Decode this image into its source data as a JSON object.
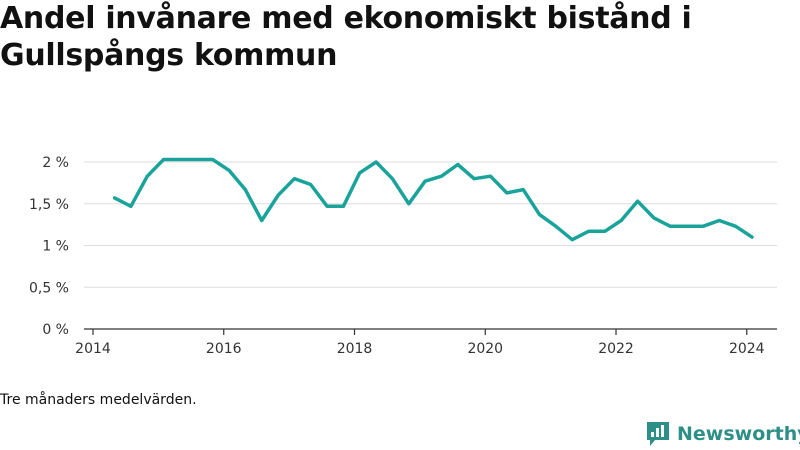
{
  "title": "Andel invånare med ekonomiskt bistånd i Gullspångs kommun",
  "caption": "Tre månaders medelvärden.",
  "brand": {
    "name": "Newsworthy",
    "icon": "newsworthy-logo-icon"
  },
  "colors": {
    "line": "#1aa39a",
    "grid": "#dddddd",
    "brand": "#2e8f86"
  },
  "chart_data": {
    "type": "line",
    "title": "Andel invånare med ekonomiskt bistånd i Gullspångs kommun",
    "xlabel": "",
    "ylabel": "",
    "xlim": [
      2014,
      2024.6
    ],
    "ylim": [
      0,
      2
    ],
    "x_ticks": [
      2014,
      2016,
      2018,
      2020,
      2022,
      2024
    ],
    "x_tick_labels": [
      "2014",
      "2016",
      "2018",
      "2020",
      "2022",
      "2024"
    ],
    "y_ticks": [
      0,
      0.5,
      1,
      1.5,
      2
    ],
    "y_tick_labels": [
      "0 %",
      "0,5 %",
      "1 %",
      "1,5 %",
      "2 %"
    ],
    "grid": true,
    "legend": "none",
    "series": [
      {
        "x": [
          2014.33,
          2014.58,
          2014.83,
          2015.08,
          2015.33,
          2015.58,
          2015.83,
          2016.08,
          2016.33,
          2016.58,
          2016.83,
          2017.08,
          2017.33,
          2017.58,
          2017.83,
          2018.08,
          2018.33,
          2018.58,
          2018.83,
          2019.08,
          2019.33,
          2019.58,
          2019.83,
          2020.08,
          2020.33,
          2020.58,
          2020.83,
          2021.08,
          2021.33,
          2021.58,
          2021.83,
          2022.08,
          2022.33,
          2022.58,
          2022.83,
          2023.08,
          2023.33,
          2023.58,
          2023.83,
          2024.08
        ],
        "y": [
          1.57,
          1.47,
          1.83,
          2.03,
          2.03,
          2.03,
          2.03,
          1.9,
          1.67,
          1.3,
          1.6,
          1.8,
          1.73,
          1.47,
          1.47,
          1.87,
          2.0,
          1.8,
          1.5,
          1.77,
          1.83,
          1.97,
          1.8,
          1.83,
          1.63,
          1.67,
          1.37,
          1.23,
          1.07,
          1.17,
          1.17,
          1.3,
          1.53,
          1.33,
          1.23,
          1.23,
          1.23,
          1.3,
          1.23,
          1.1
        ]
      }
    ]
  }
}
